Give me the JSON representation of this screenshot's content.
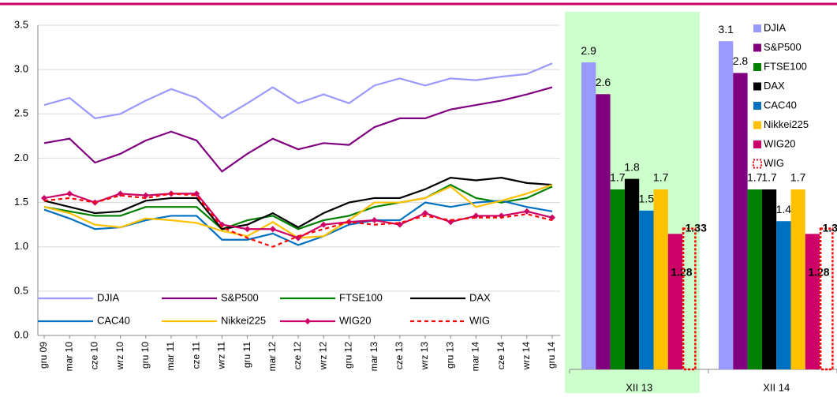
{
  "chart_data": [
    {
      "type": "line",
      "categories": [
        "gru 09",
        "mar 10",
        "cze 10",
        "wrz 10",
        "gru 10",
        "mar 11",
        "cze 11",
        "wrz 11",
        "gru 11",
        "mar 12",
        "cze 12",
        "wrz 12",
        "gru 12",
        "mar 13",
        "cze 13",
        "wrz 13",
        "gru 13",
        "mar 14",
        "cze 14",
        "wrz 14",
        "gru 14"
      ],
      "series": [
        {
          "name": "DJIA",
          "color": "#9999ff",
          "values": [
            2.6,
            2.68,
            2.45,
            2.5,
            2.65,
            2.78,
            2.68,
            2.45,
            2.62,
            2.8,
            2.62,
            2.72,
            2.62,
            2.82,
            2.9,
            2.82,
            2.9,
            2.88,
            2.92,
            2.95,
            3.07
          ]
        },
        {
          "name": "S&P500",
          "color": "#800080",
          "values": [
            2.17,
            2.22,
            1.95,
            2.05,
            2.2,
            2.3,
            2.2,
            1.85,
            2.05,
            2.22,
            2.1,
            2.17,
            2.15,
            2.35,
            2.45,
            2.45,
            2.55,
            2.6,
            2.65,
            2.72,
            2.8
          ]
        },
        {
          "name": "FTSE100",
          "color": "#008000",
          "values": [
            1.45,
            1.4,
            1.35,
            1.35,
            1.45,
            1.45,
            1.45,
            1.2,
            1.3,
            1.35,
            1.2,
            1.3,
            1.35,
            1.45,
            1.5,
            1.55,
            1.7,
            1.55,
            1.5,
            1.55,
            1.68
          ]
        },
        {
          "name": "DAX",
          "color": "#000000",
          "values": [
            1.52,
            1.45,
            1.38,
            1.4,
            1.52,
            1.55,
            1.55,
            1.2,
            1.25,
            1.38,
            1.22,
            1.38,
            1.5,
            1.55,
            1.55,
            1.65,
            1.78,
            1.75,
            1.78,
            1.72,
            1.7
          ]
        },
        {
          "name": "CAC40",
          "color": "#0070c0",
          "values": [
            1.42,
            1.32,
            1.2,
            1.22,
            1.3,
            1.35,
            1.35,
            1.08,
            1.08,
            1.15,
            1.02,
            1.12,
            1.25,
            1.3,
            1.3,
            1.5,
            1.45,
            1.5,
            1.52,
            1.45,
            1.4
          ]
        },
        {
          "name": "Nikkei225",
          "color": "#ffc000",
          "values": [
            1.45,
            1.38,
            1.25,
            1.22,
            1.32,
            1.3,
            1.27,
            1.18,
            1.12,
            1.28,
            1.1,
            1.12,
            1.3,
            1.5,
            1.5,
            1.55,
            1.68,
            1.45,
            1.52,
            1.6,
            1.7
          ]
        },
        {
          "name": "WIG20",
          "color": "#cc0066",
          "marker": "diamond",
          "values": [
            1.55,
            1.6,
            1.5,
            1.6,
            1.58,
            1.6,
            1.6,
            1.25,
            1.2,
            1.2,
            1.1,
            1.25,
            1.28,
            1.3,
            1.25,
            1.38,
            1.28,
            1.35,
            1.35,
            1.4,
            1.33
          ]
        },
        {
          "name": "WIG",
          "color": "#ff0000",
          "dashed": true,
          "values": [
            1.52,
            1.55,
            1.5,
            1.58,
            1.55,
            1.6,
            1.58,
            1.22,
            1.1,
            1.0,
            1.12,
            1.2,
            1.28,
            1.25,
            1.27,
            1.35,
            1.3,
            1.33,
            1.33,
            1.37,
            1.3
          ]
        }
      ],
      "ylim": [
        0,
        3.5
      ],
      "yticks": [
        {
          "value": 0,
          "label": "0.0"
        },
        0.5,
        {
          "value": 1,
          "label": "1.0"
        },
        1.5,
        {
          "value": 2,
          "label": "2.0"
        },
        2.5,
        {
          "value": 3,
          "label": "3.0"
        },
        3.5
      ],
      "grid": true
    },
    {
      "type": "bar",
      "categories": [
        "XII 13",
        "XII 14"
      ],
      "series": [
        {
          "name": "DJIA",
          "color": "#9999ff",
          "values": [
            2.9,
            3.1
          ]
        },
        {
          "name": "S&P500",
          "color": "#800080",
          "values": [
            2.6,
            2.8
          ]
        },
        {
          "name": "FTSE100",
          "color": "#008000",
          "values": [
            1.7,
            1.7
          ]
        },
        {
          "name": "DAX",
          "color": "#000000",
          "values": [
            1.8,
            1.7
          ]
        },
        {
          "name": "CAC40",
          "color": "#0070c0",
          "values": [
            1.5,
            1.4
          ]
        },
        {
          "name": "Nikkei225",
          "color": "#ffc000",
          "values": [
            1.7,
            1.7
          ]
        },
        {
          "name": "WIG20",
          "color": "#cc0066",
          "values": [
            1.28,
            1.28
          ]
        },
        {
          "name": "WIG",
          "color": "#ff0000",
          "dashed": true,
          "values": [
            1.33,
            1.33
          ]
        }
      ],
      "ylim": [
        0,
        3.4
      ],
      "highlight": "#ccffcc"
    }
  ]
}
